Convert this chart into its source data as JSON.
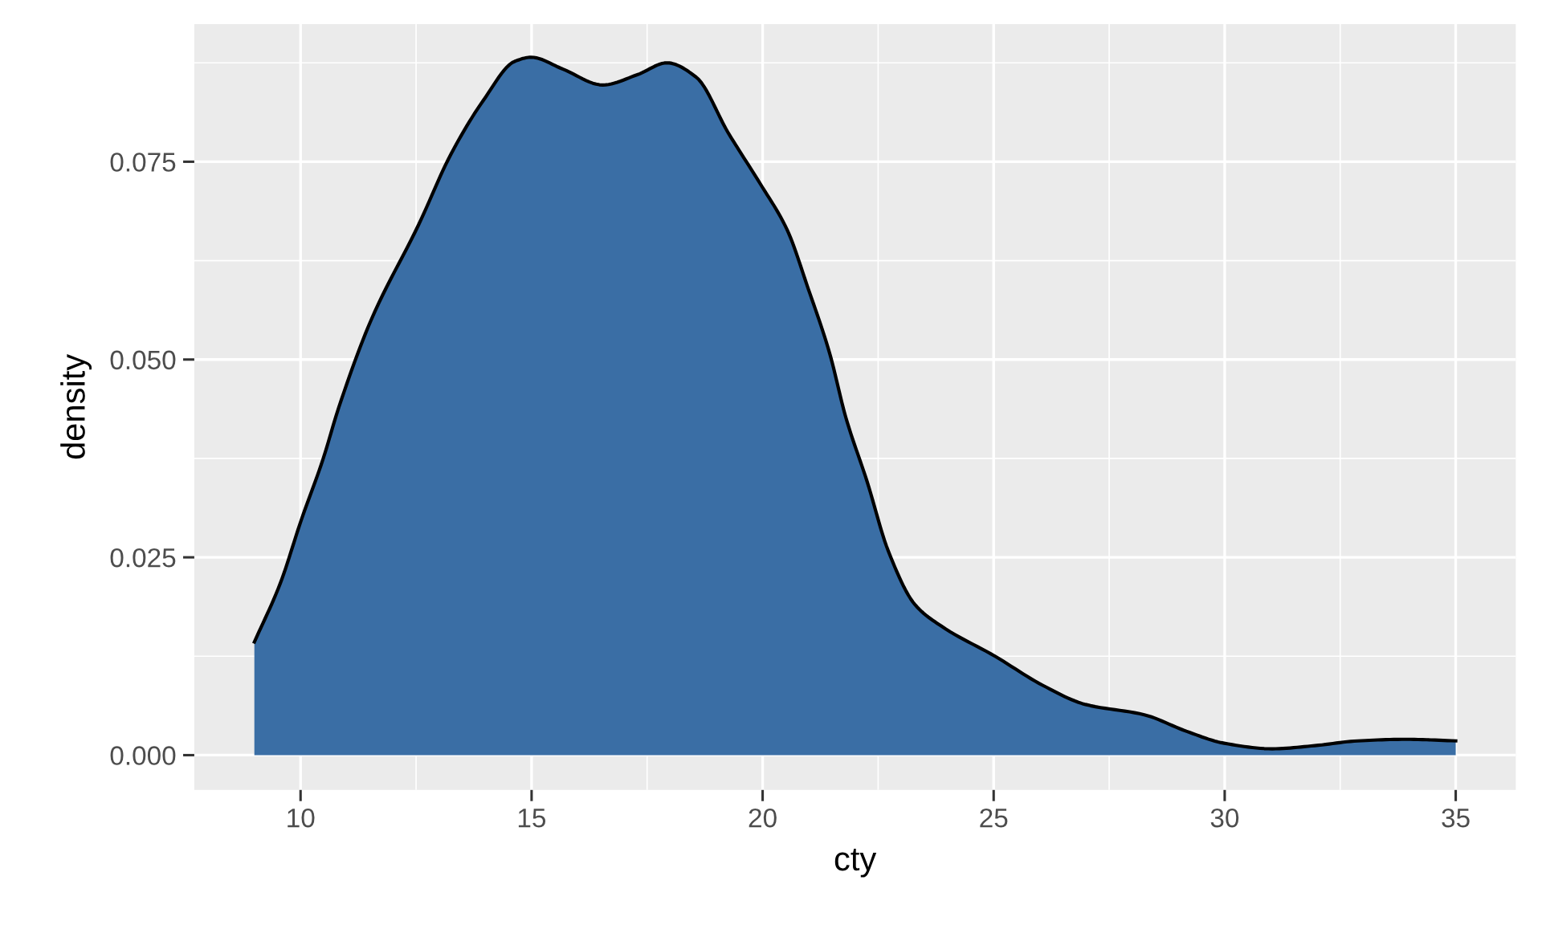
{
  "chart_data": {
    "type": "area",
    "xlabel": "cty",
    "ylabel": "density",
    "x": [
      9,
      9.56,
      10.02,
      10.48,
      10.83,
      11.52,
      12.56,
      13.25,
      13.95,
      14.64,
      14.99,
      15.68,
      16.54,
      17.29,
      17.93,
      18.56,
      19.26,
      19.95,
      20.53,
      20.99,
      21.45,
      21.8,
      22.26,
      22.72,
      23.3,
      23.87,
      25.03,
      26.07,
      26.99,
      28.26,
      29.18,
      29.99,
      31.03,
      31.95,
      32.88,
      33.92,
      35
    ],
    "series": [
      {
        "color": "#3a6ea5",
        "values": [
          0.0143,
          0.0217,
          0.0298,
          0.0373,
          0.044,
          0.0549,
          0.0671,
          0.0759,
          0.0827,
          0.0877,
          0.0882,
          0.0867,
          0.0847,
          0.086,
          0.0875,
          0.0857,
          0.0786,
          0.0722,
          0.0664,
          0.0589,
          0.0508,
          0.0427,
          0.0346,
          0.0258,
          0.019,
          0.0163,
          0.0125,
          0.0088,
          0.0064,
          0.0051,
          0.003,
          0.0015,
          0.0008,
          0.0012,
          0.0018,
          0.002,
          0.0018
        ]
      }
    ],
    "xlim": [
      7.7,
      36.3
    ],
    "ylim": [
      -0.0044,
      0.0924
    ],
    "xticks": [
      10,
      15,
      20,
      25,
      30,
      35
    ],
    "yticks": [
      {
        "value": 0,
        "label": "0.000"
      },
      0.025,
      {
        "value": 0.05,
        "label": "0.050"
      },
      0.075
    ],
    "grid": true
  }
}
